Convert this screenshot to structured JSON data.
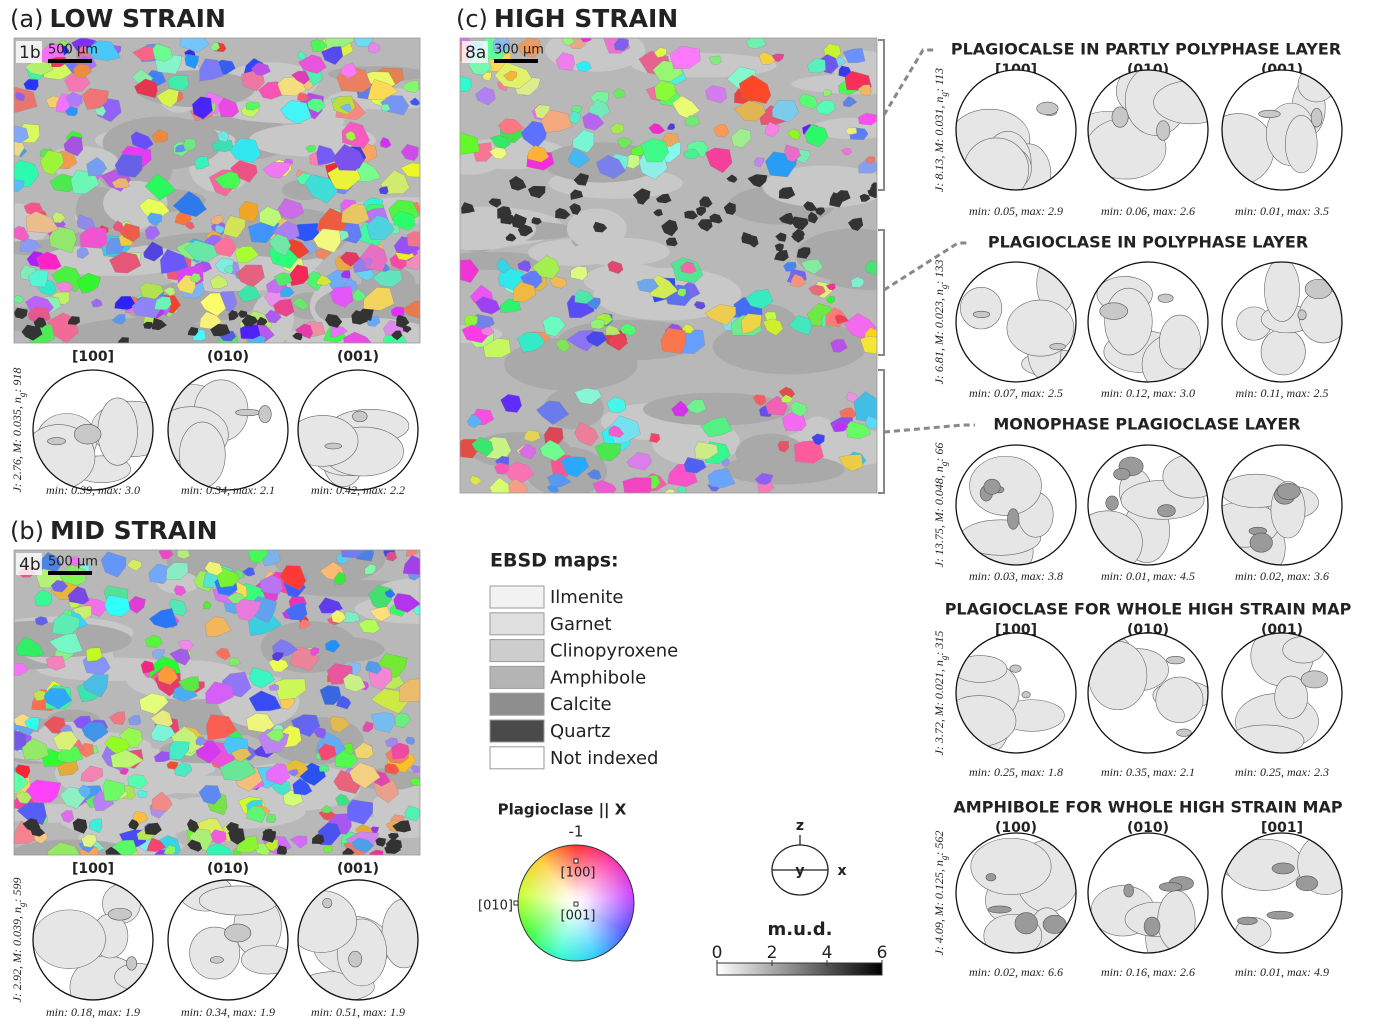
{
  "left_panels": [
    {
      "label": "(a)",
      "title": "LOW STRAIN",
      "map_id": "1b",
      "scale_bar": "500 µm",
      "headers": [
        "[100]",
        "(010)",
        "(001)"
      ],
      "stats": {
        "text": "J: 2.76, M: 0.035, n",
        "sub": "g",
        "rest": ": 918"
      },
      "ranges": [
        "min: 0.39, max: 3.0",
        "min: 0.34, max: 2.1",
        "min: 0.42, max: 2.2"
      ]
    },
    {
      "label": "(b)",
      "title": "MID STRAIN",
      "map_id": "4b",
      "scale_bar": "500 µm",
      "headers": [
        "[100]",
        "(010)",
        "(001)"
      ],
      "stats": {
        "text": "J: 2.92, M: 0.039, n",
        "sub": "g",
        "rest": ": 599"
      },
      "ranges": [
        "min: 0.18, max: 1.9",
        "min: 0.34, max: 1.9",
        "min: 0.51, max: 1.9"
      ]
    }
  ],
  "high_strain": {
    "label": "(c)",
    "title": "HIGH STRAIN",
    "map_id": "8a",
    "scale_bar": "300 µm",
    "sections": [
      {
        "title": "PLAGIOCALSE IN PARTLY POLYPHASE LAYER",
        "headers": [
          "[100]",
          "(010)",
          "(001)"
        ],
        "stats": {
          "text": "J: 8.13, M: 0.031, n",
          "sub": "g",
          "rest": ": 113"
        },
        "ranges": [
          "min: 0.05, max: 2.9",
          "min: 0.06, max: 2.6",
          "min: 0.01, max: 3.5"
        ]
      },
      {
        "title": "PLAGIOCLASE IN POLYPHASE LAYER",
        "stats": {
          "text": "J: 6.81, M: 0.023, n",
          "sub": "g",
          "rest": ": 133"
        },
        "ranges": [
          "min: 0.07, max: 2.5",
          "min: 0.12, max: 3.0",
          "min: 0.11, max: 2.5"
        ]
      },
      {
        "title": "MONOPHASE PLAGIOCLASE LAYER",
        "stats": {
          "text": "J: 13.75, M: 0.048, n",
          "sub": "g",
          "rest": ": 66"
        },
        "ranges": [
          "min: 0.03, max: 3.8",
          "min: 0.01, max: 4.5",
          "min: 0.02, max: 3.6"
        ]
      },
      {
        "title": "PLAGIOCLASE FOR WHOLE HIGH STRAIN MAP",
        "headers": [
          "[100]",
          "(010)",
          "(001)"
        ],
        "stats": {
          "text": "J: 3.72, M: 0.021, n",
          "sub": "g",
          "rest": ": 315"
        },
        "ranges": [
          "min: 0.25, max: 1.8",
          "min: 0.35, max: 2.1",
          "min: 0.25, max: 2.3"
        ]
      },
      {
        "title": "AMPHIBOLE FOR WHOLE HIGH STRAIN MAP",
        "headers": [
          "(100)",
          "(010)",
          "[001]"
        ],
        "stats": {
          "text": "J: 4.09, M: 0.125, n",
          "sub": "g",
          "rest": ": 562"
        },
        "ranges": [
          "min: 0.02, max: 6.6",
          "min: 0.16, max: 2.6",
          "min: 0.01, max: 4.9"
        ]
      }
    ]
  },
  "ebsd_legend": {
    "title": "EBSD maps:",
    "items": [
      {
        "label": "Ilmenite",
        "color": "#f2f2f2"
      },
      {
        "label": "Garnet",
        "color": "#e0e0e0"
      },
      {
        "label": "Clinopyroxene",
        "color": "#cdcdcd"
      },
      {
        "label": "Amphibole",
        "color": "#b4b4b4"
      },
      {
        "label": "Calcite",
        "color": "#8e8e8e"
      },
      {
        "label": "Quartz",
        "color": "#4a4a4a"
      },
      {
        "label": "Not indexed",
        "color": "#ffffff"
      }
    ]
  },
  "ipf_key": {
    "title": "Plagioclase || X",
    "top": "-1",
    "labels": [
      "[100]",
      "[010]",
      "[001]"
    ]
  },
  "axes_key": [
    "z",
    "y",
    "x"
  ],
  "mud_scale": {
    "title": "m.u.d.",
    "ticks": [
      0,
      2,
      4,
      6
    ]
  }
}
